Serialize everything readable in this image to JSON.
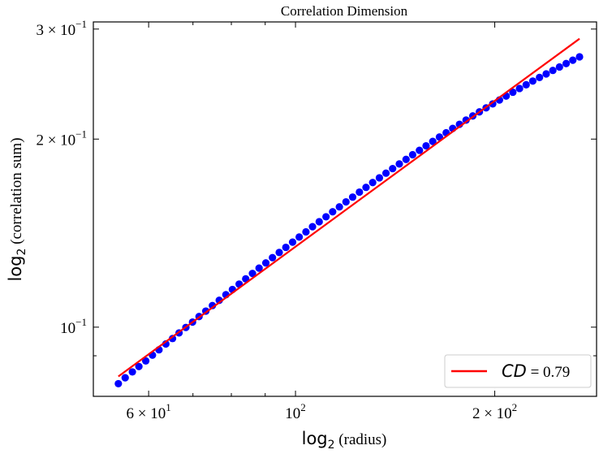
{
  "chart_data": {
    "type": "scatter",
    "title": "Correlation Dimension",
    "xlabel": {
      "prefix": "log",
      "sub": "2",
      "rest": " (radius)"
    },
    "ylabel": {
      "prefix": "log",
      "sub": "2",
      "rest": " (correlation sum)"
    },
    "x_scale": "log",
    "y_scale": "log",
    "xlim": [
      49.5,
      285
    ],
    "ylim": [
      0.0775,
      0.308
    ],
    "x_ticks": [
      {
        "value": 60,
        "mant": "6",
        "base": "10",
        "exp": "1"
      },
      {
        "value": 100,
        "mant": "",
        "base": "10",
        "exp": "2"
      },
      {
        "value": 200,
        "mant": "2",
        "base": "10",
        "exp": "2"
      }
    ],
    "y_ticks": [
      {
        "value": 0.1,
        "mant": "",
        "base": "10",
        "exp": "−1"
      },
      {
        "value": 0.2,
        "mant": "2",
        "base": "10",
        "exp": "−1"
      },
      {
        "value": 0.3,
        "mant": "3",
        "base": "10",
        "exp": "−1"
      }
    ],
    "x_minor_ticks": [
      70,
      80,
      90
    ],
    "y_minor_ticks": [
      0.09
    ],
    "series": [
      {
        "name": "",
        "color": "#0000ff",
        "x": [
          54.0,
          55.3,
          56.7,
          58.0,
          59.4,
          60.8,
          62.2,
          63.7,
          65.2,
          66.7,
          68.3,
          69.9,
          71.5,
          73.2,
          74.9,
          76.7,
          78.5,
          80.3,
          82.2,
          84.1,
          86.1,
          88.1,
          90.2,
          92.3,
          94.5,
          96.7,
          99.0,
          101.3,
          103.7,
          106.1,
          108.6,
          111.2,
          113.8,
          116.5,
          119.2,
          122.0,
          124.9,
          127.8,
          130.8,
          133.9,
          137.0,
          140.2,
          143.5,
          146.9,
          150.3,
          153.9,
          157.5,
          161.2,
          165.0,
          168.9,
          172.8,
          176.9,
          181.0,
          185.3,
          189.6,
          194.1,
          198.6,
          203.3,
          208.1,
          213.0,
          218.0,
          223.1,
          228.3,
          233.7,
          239.2,
          244.8,
          250.5,
          256.4,
          262.4,
          268.6
        ],
        "y": [
          0.0812,
          0.083,
          0.0848,
          0.0865,
          0.0883,
          0.0902,
          0.092,
          0.094,
          0.0959,
          0.0979,
          0.0999,
          0.1019,
          0.104,
          0.1061,
          0.1083,
          0.1104,
          0.1127,
          0.1149,
          0.1172,
          0.1195,
          0.1219,
          0.1243,
          0.1267,
          0.1292,
          0.1317,
          0.1342,
          0.1368,
          0.1394,
          0.1421,
          0.1448,
          0.1475,
          0.1502,
          0.153,
          0.1558,
          0.1587,
          0.1615,
          0.1645,
          0.1674,
          0.1704,
          0.1734,
          0.1764,
          0.1794,
          0.1825,
          0.1856,
          0.1888,
          0.1919,
          0.1951,
          0.1983,
          0.2015,
          0.2047,
          0.208,
          0.2112,
          0.2145,
          0.2178,
          0.2211,
          0.2244,
          0.2277,
          0.231,
          0.2344,
          0.2377,
          0.241,
          0.2443,
          0.2477,
          0.251,
          0.2543,
          0.2576,
          0.2609,
          0.2642,
          0.2675,
          0.2708
        ]
      },
      {
        "name": "CD = 0.79",
        "type": "line",
        "color": "#ff0000",
        "x": [
          54.0,
          268.6
        ],
        "y": [
          0.0834,
          0.2895
        ]
      }
    ],
    "legend": {
      "placement": "lower-right",
      "label_italic": "CD",
      "label_rest": " = 0.79",
      "line_color": "#ff0000"
    },
    "grid": false
  }
}
